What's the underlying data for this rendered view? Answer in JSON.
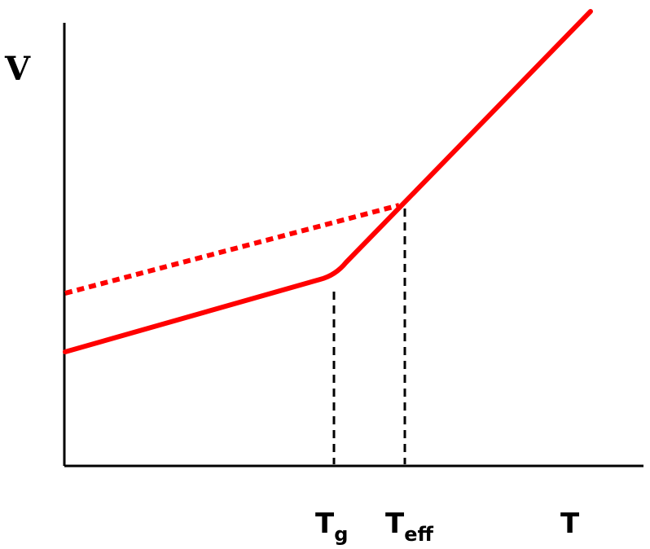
{
  "diagram": {
    "y_axis_label": "V",
    "x_axis_label": "T",
    "tg_label": {
      "main": "T",
      "sub": "g"
    },
    "teff_label": {
      "main": "T",
      "sub": "eff"
    },
    "colors": {
      "curve": "#ff0000",
      "axes": "#000000",
      "guides": "#000000"
    }
  }
}
